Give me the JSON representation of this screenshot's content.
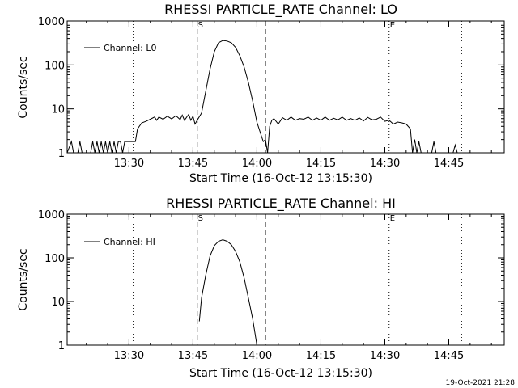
{
  "chart_data": [
    {
      "type": "line",
      "title": "RHESSI PARTICLE_RATE Channel: LO",
      "xlabel": "Start Time (16-Oct-12 13:15:30)",
      "ylabel": "Counts/sec",
      "yscale": "log",
      "ylim": [
        1,
        1000
      ],
      "xlim": [
        "13:15:30",
        "14:58:00"
      ],
      "x_tick_labels": [
        "13:30",
        "13:45",
        "14:00",
        "14:15",
        "14:30",
        "14:45"
      ],
      "y_tick_labels": [
        "1",
        "10",
        "100",
        "1000"
      ],
      "legend": {
        "placement": "top-left",
        "entries": [
          "Channel: L0"
        ]
      },
      "markers": {
        "dotted": [
          "13:31:00",
          "14:48:00"
        ],
        "dashed": [
          "13:46:00",
          "14:02:00"
        ],
        "labels": [
          {
            "text": "S",
            "x": "13:46:00"
          },
          {
            "text": "E",
            "x": "14:31:00"
          }
        ],
        "dotted_short_label": [
          "14:31:00"
        ]
      },
      "series": [
        {
          "name": "Channel: L0",
          "points": [
            [
              "13:15:30",
              1
            ],
            [
              "13:16:30",
              1.8
            ],
            [
              "13:17:00",
              1
            ],
            [
              "13:18:00",
              1
            ],
            [
              "13:18:30",
              1.8
            ],
            [
              "13:19:00",
              1
            ],
            [
              "13:21:00",
              1
            ],
            [
              "13:21:30",
              1.8
            ],
            [
              "13:22:00",
              1
            ],
            [
              "13:22:30",
              1.8
            ],
            [
              "13:23:00",
              1
            ],
            [
              "13:23:30",
              1.8
            ],
            [
              "13:24:00",
              1
            ],
            [
              "13:24:30",
              1.8
            ],
            [
              "13:25:00",
              1
            ],
            [
              "13:25:30",
              1.8
            ],
            [
              "13:26:00",
              1
            ],
            [
              "13:26:30",
              1.8
            ],
            [
              "13:27:00",
              1
            ],
            [
              "13:27:30",
              1.8
            ],
            [
              "13:28:00",
              1.8
            ],
            [
              "13:28:30",
              1
            ],
            [
              "13:29:00",
              1.8
            ],
            [
              "13:30:00",
              1.8
            ],
            [
              "13:31:00",
              1.8
            ],
            [
              "13:31:30",
              1.8
            ],
            [
              "13:32:00",
              3.5
            ],
            [
              "13:33:00",
              4.8
            ],
            [
              "13:34:00",
              5.2
            ],
            [
              "13:35:00",
              5.8
            ],
            [
              "13:36:00",
              6.5
            ],
            [
              "13:36:30",
              5.5
            ],
            [
              "13:37:00",
              6.5
            ],
            [
              "13:38:00",
              5.8
            ],
            [
              "13:39:00",
              6.8
            ],
            [
              "13:40:00",
              5.9
            ],
            [
              "13:41:00",
              7
            ],
            [
              "13:42:00",
              5.7
            ],
            [
              "13:42:30",
              7.2
            ],
            [
              "13:43:00",
              5.5
            ],
            [
              "13:44:00",
              7.5
            ],
            [
              "13:44:30",
              5.5
            ],
            [
              "13:45:00",
              6.8
            ],
            [
              "13:45:30",
              4.5
            ],
            [
              "13:46:00",
              5.5
            ],
            [
              "13:47:00",
              8
            ],
            [
              "13:48:00",
              25
            ],
            [
              "13:49:00",
              80
            ],
            [
              "13:50:00",
              200
            ],
            [
              "13:51:00",
              320
            ],
            [
              "13:52:00",
              360
            ],
            [
              "13:53:00",
              350
            ],
            [
              "13:54:00",
              320
            ],
            [
              "13:55:00",
              250
            ],
            [
              "13:56:00",
              160
            ],
            [
              "13:57:00",
              90
            ],
            [
              "13:58:00",
              40
            ],
            [
              "13:59:00",
              15
            ],
            [
              "14:00:00",
              5
            ],
            [
              "14:01:00",
              2.5
            ],
            [
              "14:01:30",
              1.8
            ],
            [
              "14:02:00",
              2
            ],
            [
              "14:02:30",
              1
            ],
            [
              "14:03:00",
              4
            ],
            [
              "14:03:30",
              5.5
            ],
            [
              "14:04:00",
              6
            ],
            [
              "14:05:00",
              4.5
            ],
            [
              "14:06:00",
              6.3
            ],
            [
              "14:07:00",
              5.5
            ],
            [
              "14:08:00",
              6.5
            ],
            [
              "14:09:00",
              5.5
            ],
            [
              "14:10:00",
              6
            ],
            [
              "14:11:00",
              5.8
            ],
            [
              "14:12:00",
              6.5
            ],
            [
              "14:13:00",
              5.5
            ],
            [
              "14:14:00",
              6.2
            ],
            [
              "14:15:00",
              5.5
            ],
            [
              "14:16:00",
              6.5
            ],
            [
              "14:17:00",
              5.5
            ],
            [
              "14:18:00",
              6.1
            ],
            [
              "14:19:00",
              5.6
            ],
            [
              "14:20:00",
              6.5
            ],
            [
              "14:21:00",
              5.5
            ],
            [
              "14:22:00",
              6
            ],
            [
              "14:23:00",
              5.5
            ],
            [
              "14:24:00",
              6.2
            ],
            [
              "14:25:00",
              5.3
            ],
            [
              "14:26:00",
              6.4
            ],
            [
              "14:27:00",
              5.6
            ],
            [
              "14:28:00",
              5.8
            ],
            [
              "14:29:00",
              6.5
            ],
            [
              "14:30:00",
              5.2
            ],
            [
              "14:31:00",
              5.5
            ],
            [
              "14:32:00",
              4.5
            ],
            [
              "14:33:00",
              5
            ],
            [
              "14:34:00",
              4.8
            ],
            [
              "14:35:00",
              4.5
            ],
            [
              "14:36:00",
              3.5
            ],
            [
              "14:36:30",
              1
            ],
            [
              "14:37:00",
              2
            ],
            [
              "14:37:30",
              1
            ],
            [
              "14:38:00",
              1.8
            ],
            [
              "14:38:30",
              1
            ],
            [
              "14:41:00",
              1
            ],
            [
              "14:41:30",
              1.8
            ],
            [
              "14:42:00",
              1
            ],
            [
              "14:46:00",
              1
            ],
            [
              "14:46:30",
              1.5
            ],
            [
              "14:47:00",
              1
            ]
          ]
        }
      ]
    },
    {
      "type": "line",
      "title": "RHESSI PARTICLE_RATE Channel: HI",
      "xlabel": "Start Time (16-Oct-12 13:15:30)",
      "ylabel": "Counts/sec",
      "yscale": "log",
      "ylim": [
        1,
        1000
      ],
      "xlim": [
        "13:15:30",
        "14:58:00"
      ],
      "x_tick_labels": [
        "13:30",
        "13:45",
        "14:00",
        "14:15",
        "14:30",
        "14:45"
      ],
      "y_tick_labels": [
        "1",
        "10",
        "100",
        "1000"
      ],
      "legend": {
        "placement": "top-left",
        "entries": [
          "Channel: HI"
        ]
      },
      "markers": {
        "dotted": [
          "13:31:00",
          "14:48:00"
        ],
        "dashed": [
          "13:46:00",
          "14:02:00"
        ],
        "labels": [
          {
            "text": "S",
            "x": "13:46:00"
          },
          {
            "text": "E",
            "x": "14:31:00"
          }
        ],
        "dotted_short_label": [
          "14:31:00"
        ]
      },
      "series": [
        {
          "name": "Channel: HI",
          "points": [
            [
              "13:46:30",
              3.5
            ],
            [
              "13:47:00",
              12
            ],
            [
              "13:48:00",
              40
            ],
            [
              "13:49:00",
              110
            ],
            [
              "13:50:00",
              190
            ],
            [
              "13:51:00",
              240
            ],
            [
              "13:52:00",
              260
            ],
            [
              "13:53:00",
              240
            ],
            [
              "13:54:00",
              200
            ],
            [
              "13:55:00",
              140
            ],
            [
              "13:56:00",
              80
            ],
            [
              "13:57:00",
              35
            ],
            [
              "13:58:00",
              12
            ],
            [
              "13:59:00",
              4
            ],
            [
              "13:59:30",
              2
            ],
            [
              "14:00:00",
              1
            ]
          ]
        }
      ]
    }
  ],
  "footer": {
    "timestamp": "19-Oct-2021 21:28"
  }
}
